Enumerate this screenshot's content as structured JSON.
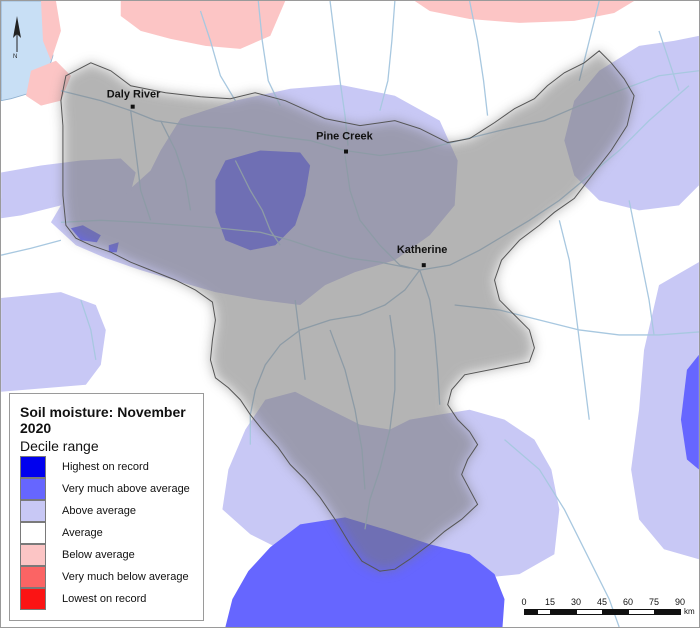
{
  "legend": {
    "title": "Soil moisture: November 2020",
    "subtitle": "Decile range",
    "items": [
      {
        "label": "Highest on record",
        "color": "#0000ee"
      },
      {
        "label": "Very much above average",
        "color": "#6666ff"
      },
      {
        "label": "Above average",
        "color": "#c8c8f5"
      },
      {
        "label": "Average",
        "color": "#ffffff"
      },
      {
        "label": "Below average",
        "color": "#fcc5c5"
      },
      {
        "label": "Very much below average",
        "color": "#fb6464"
      },
      {
        "label": "Lowest on record",
        "color": "#fb1414"
      }
    ]
  },
  "towns": [
    {
      "name": "Daly River"
    },
    {
      "name": "Pine Creek"
    },
    {
      "name": "Katherine"
    }
  ],
  "north_arrow": {
    "label": "N"
  },
  "scale_bar": {
    "ticks": [
      "0",
      "15",
      "30",
      "45",
      "60",
      "75",
      "90"
    ],
    "unit": "km"
  },
  "colors": {
    "water": "#c8dff5",
    "river": "#a8c8e0",
    "catchment_outline": "#555555"
  }
}
